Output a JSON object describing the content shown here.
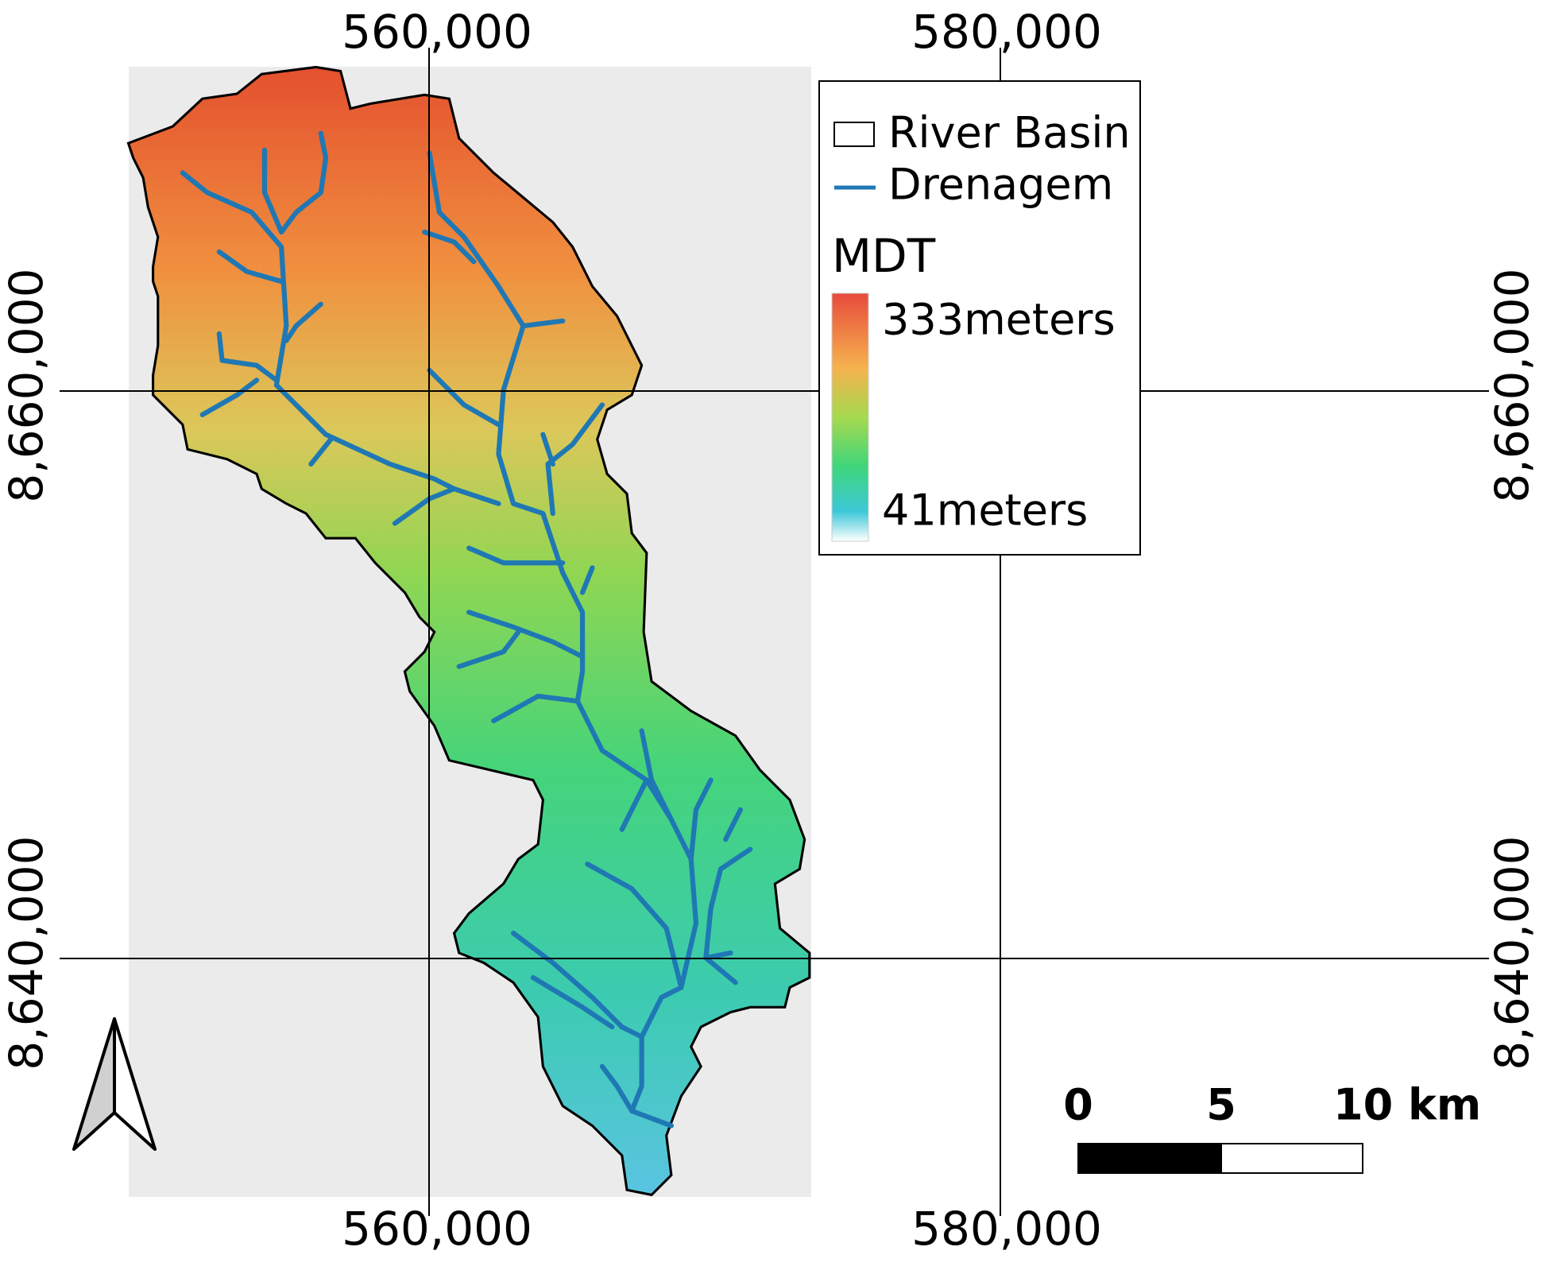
{
  "grid_labels": {
    "top": [
      "560,000",
      "580,000"
    ],
    "bottom": [
      "560,000",
      "580,000"
    ],
    "left": [
      "8,660,000",
      "8,640,000"
    ],
    "right": [
      "8,660,000",
      "8,640,000"
    ]
  },
  "legend": {
    "items": [
      "River Basin",
      "Drenagem"
    ],
    "title": "MDT",
    "max_label": "333meters",
    "min_label": "41meters"
  },
  "scale_bar": {
    "labels": [
      "0",
      "5",
      "10 km"
    ]
  }
}
